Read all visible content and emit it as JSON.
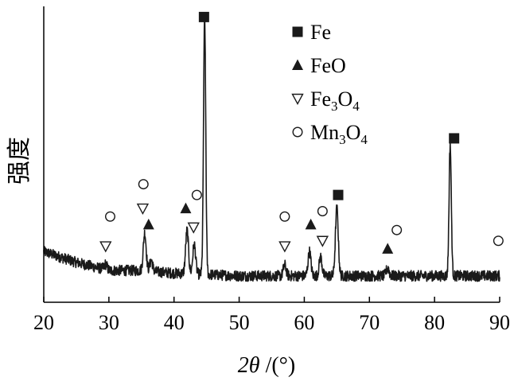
{
  "chart_data": {
    "type": "line",
    "title": "",
    "xlabel": "2θ /(°)",
    "ylabel": "强度",
    "xlim": [
      20,
      90
    ],
    "ylim": [
      0,
      100
    ],
    "xticks": [
      20,
      30,
      40,
      50,
      60,
      70,
      80,
      90
    ],
    "grid": false,
    "legend_position": "top-right",
    "line_color": "#1a1a1a",
    "series": [
      {
        "peaks": [
          {
            "x": 29.5,
            "y": 2
          },
          {
            "x": 35.5,
            "y": 14
          },
          {
            "x": 36.5,
            "y": 4
          },
          {
            "x": 42.0,
            "y": 16
          },
          {
            "x": 43.1,
            "y": 11
          },
          {
            "x": 44.7,
            "y": 95
          },
          {
            "x": 57.0,
            "y": 4
          },
          {
            "x": 60.8,
            "y": 9
          },
          {
            "x": 62.5,
            "y": 7
          },
          {
            "x": 65.0,
            "y": 25
          },
          {
            "x": 72.8,
            "y": 3
          },
          {
            "x": 82.4,
            "y": 49
          }
        ],
        "baseline": [
          {
            "x": 20,
            "y": 12
          },
          {
            "x": 25,
            "y": 8
          },
          {
            "x": 30,
            "y": 5
          },
          {
            "x": 35,
            "y": 5
          },
          {
            "x": 40,
            "y": 4
          },
          {
            "x": 50,
            "y": 3
          },
          {
            "x": 60,
            "y": 3
          },
          {
            "x": 70,
            "y": 3
          },
          {
            "x": 80,
            "y": 3
          },
          {
            "x": 90,
            "y": 3
          }
        ]
      }
    ],
    "legend": [
      {
        "marker": "filled-square",
        "label": "Fe",
        "sub": ""
      },
      {
        "marker": "filled-triangle",
        "label": "FeO",
        "sub": ""
      },
      {
        "marker": "hollow-down-triangle",
        "label": "Fe",
        "sub": "3",
        "label2": "O",
        "sub2": "4"
      },
      {
        "marker": "hollow-circle",
        "label": "Mn",
        "sub": "3",
        "label2": "O",
        "sub2": "4"
      }
    ],
    "annotations": [
      {
        "marker": "hollow-down-triangle",
        "x": 29.5,
        "y": 14
      },
      {
        "marker": "hollow-circle",
        "x": 30.2,
        "y": 25
      },
      {
        "marker": "hollow-down-triangle",
        "x": 35.2,
        "y": 28
      },
      {
        "marker": "hollow-circle",
        "x": 35.3,
        "y": 37
      },
      {
        "marker": "filled-triangle",
        "x": 36.1,
        "y": 22
      },
      {
        "marker": "filled-triangle",
        "x": 41.8,
        "y": 28
      },
      {
        "marker": "hollow-down-triangle",
        "x": 43.0,
        "y": 21
      },
      {
        "marker": "hollow-circle",
        "x": 43.5,
        "y": 33
      },
      {
        "marker": "filled-square",
        "x": 44.6,
        "y": 99
      },
      {
        "marker": "hollow-circle",
        "x": 57.0,
        "y": 25
      },
      {
        "marker": "hollow-down-triangle",
        "x": 57.0,
        "y": 14
      },
      {
        "marker": "filled-triangle",
        "x": 61.0,
        "y": 22
      },
      {
        "marker": "hollow-circle",
        "x": 62.8,
        "y": 27
      },
      {
        "marker": "hollow-down-triangle",
        "x": 62.8,
        "y": 16
      },
      {
        "marker": "filled-square",
        "x": 65.2,
        "y": 33
      },
      {
        "marker": "filled-triangle",
        "x": 72.8,
        "y": 13
      },
      {
        "marker": "hollow-circle",
        "x": 74.2,
        "y": 20
      },
      {
        "marker": "filled-square",
        "x": 83.0,
        "y": 54
      },
      {
        "marker": "hollow-circle",
        "x": 89.8,
        "y": 16
      }
    ]
  }
}
